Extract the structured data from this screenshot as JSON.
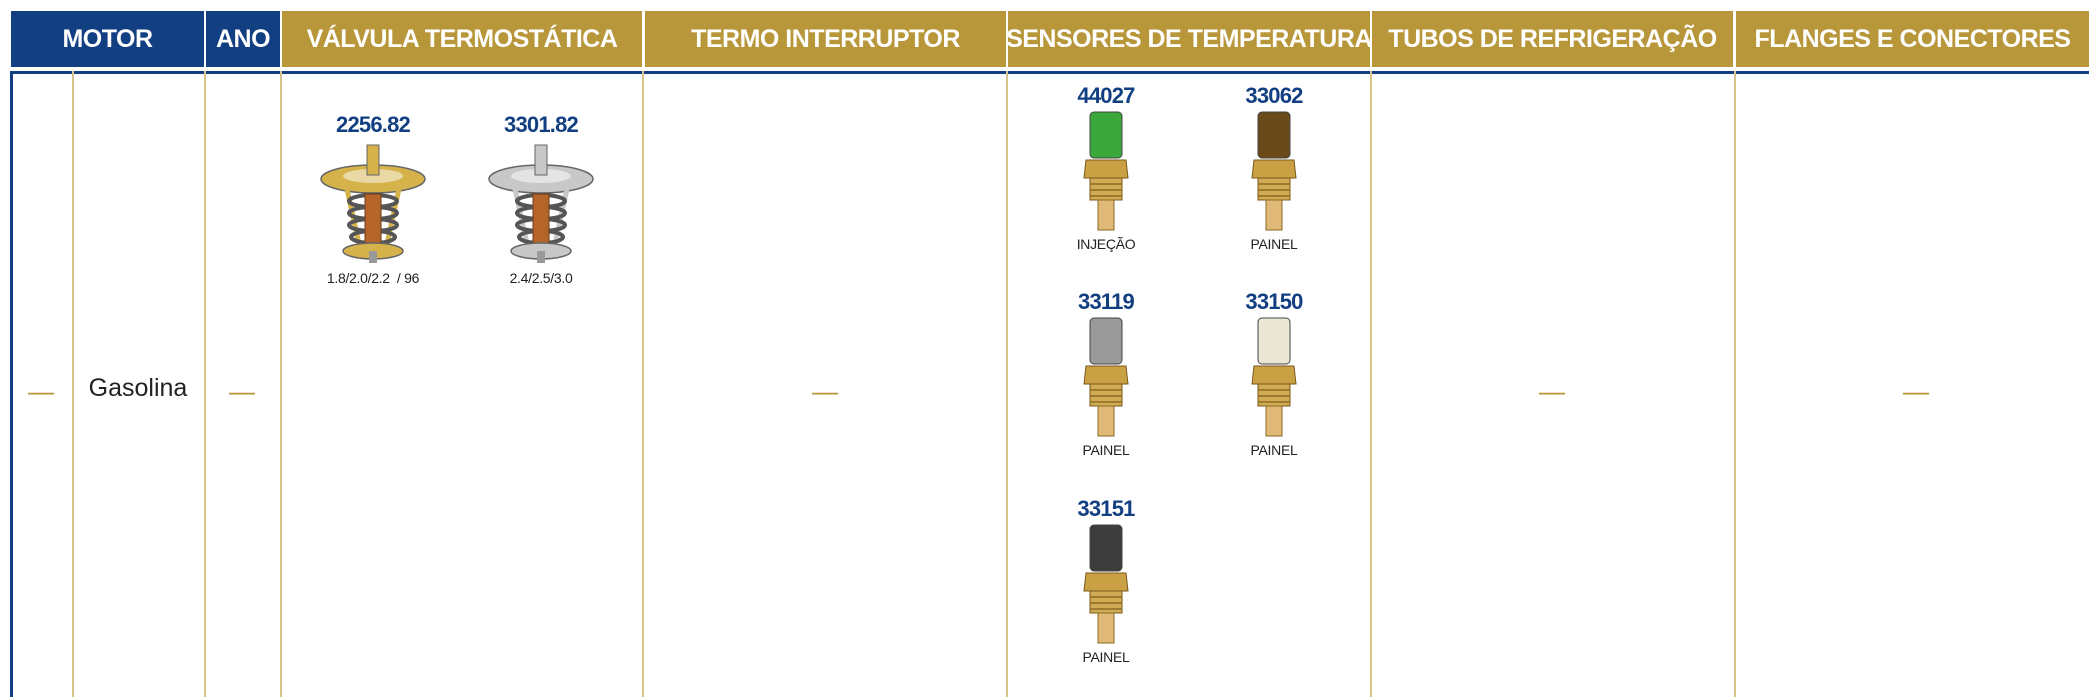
{
  "header": {
    "columns": [
      "MOTOR",
      "ANO",
      "VÁLVULA TERMOSTÁTICA",
      "TERMO INTERRUPTOR",
      "SENSORES DE TEMPERATURA",
      "TUBOS DE REFRIGERAÇÃO",
      "FLANGES E CONECTORES"
    ]
  },
  "row": {
    "motor": "—",
    "fuel": "Gasolina",
    "year": "—",
    "valvula": [
      {
        "code": "2256.82",
        "label": "1.8/2.0/2.2  / 96"
      },
      {
        "code": "3301.82",
        "label": "2.4/2.5/3.0"
      }
    ],
    "termo_interruptor": "—",
    "sensores": [
      {
        "code": "44027",
        "label": "INJEÇÃO"
      },
      {
        "code": "33062",
        "label": "PAINEL"
      },
      {
        "code": "33119",
        "label": "PAINEL"
      },
      {
        "code": "33150",
        "label": "PAINEL"
      },
      {
        "code": "33151",
        "label": "PAINEL"
      }
    ],
    "tubos": "—",
    "flanges": "—"
  }
}
